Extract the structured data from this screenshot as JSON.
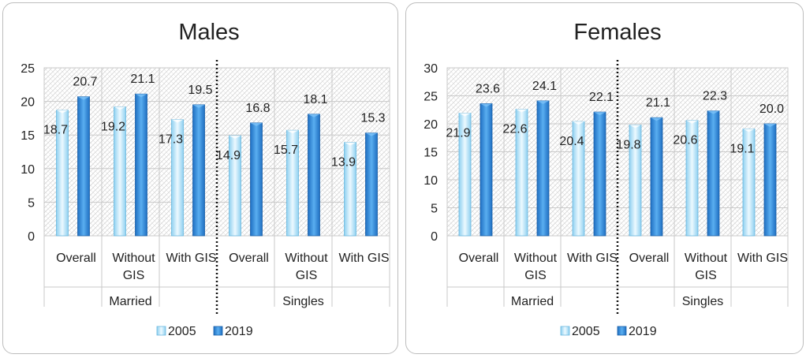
{
  "colors": {
    "s2005": "#bfe6f7",
    "s2019": "#2e86d6",
    "grid": "#c9c9c9",
    "hatch": "#d6d6d6"
  },
  "chart_data": [
    {
      "type": "bar",
      "title": "Males",
      "ylim": [
        0,
        25
      ],
      "yticks": [
        "0",
        "5",
        "10",
        "15",
        "20",
        "25"
      ],
      "groups": [
        "Married",
        "Singles"
      ],
      "categories": [
        "Overall",
        "Without GIS",
        "With GIS",
        "Overall",
        "Without GIS",
        "With GIS"
      ],
      "series": [
        {
          "name": "2005",
          "values": [
            18.7,
            19.2,
            17.3,
            14.9,
            15.7,
            13.9
          ],
          "labels": [
            "18.7",
            "19.2",
            "17.3",
            "14.9",
            "15.7",
            "13.9"
          ]
        },
        {
          "name": "2019",
          "values": [
            20.7,
            21.1,
            19.5,
            16.8,
            18.1,
            15.3
          ],
          "labels": [
            "20.7",
            "21.1",
            "19.5",
            "16.8",
            "18.1",
            "15.3"
          ]
        }
      ],
      "legend": "bottom"
    },
    {
      "type": "bar",
      "title": "Females",
      "ylim": [
        0,
        30
      ],
      "yticks": [
        "0",
        "5",
        "10",
        "15",
        "20",
        "25",
        "30"
      ],
      "groups": [
        "Married",
        "Singles"
      ],
      "categories": [
        "Overall",
        "Without GIS",
        "With GIS",
        "Overall",
        "Without GIS",
        "With GIS"
      ],
      "series": [
        {
          "name": "2005",
          "values": [
            21.9,
            22.6,
            20.4,
            19.8,
            20.6,
            19.1
          ],
          "labels": [
            "21.9",
            "22.6",
            "20.4",
            "19.8",
            "20.6",
            "19.1"
          ]
        },
        {
          "name": "2019",
          "values": [
            23.6,
            24.1,
            22.1,
            21.1,
            22.3,
            20.0
          ],
          "labels": [
            "23.6",
            "24.1",
            "22.1",
            "21.1",
            "22.3",
            "20.0"
          ]
        }
      ],
      "legend": "bottom"
    }
  ]
}
